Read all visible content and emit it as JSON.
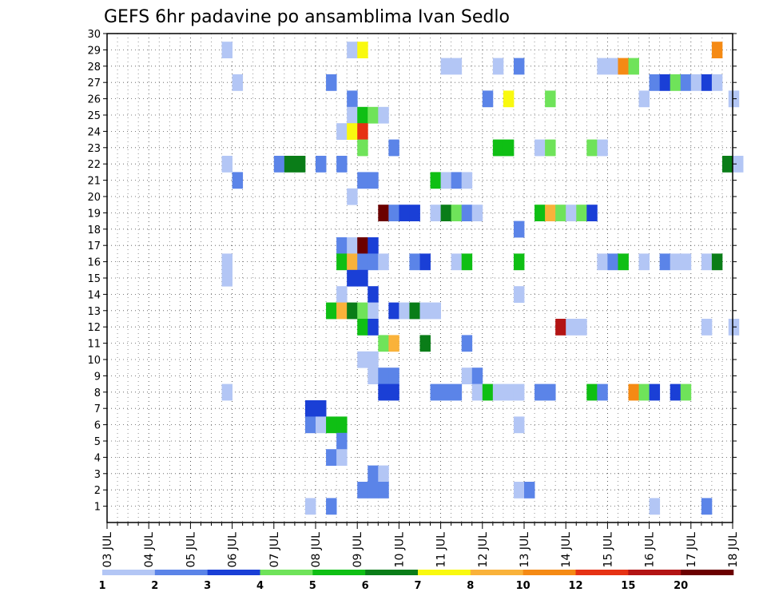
{
  "chart_data": {
    "type": "heatmap",
    "title": "GEFS 6hr padavine po ansamblima Ivan Sedlo",
    "xlabel": "",
    "ylabel": "",
    "x_tick_labels": [
      "03 JUL",
      "04 JUL",
      "05 JUL",
      "06 JUL",
      "07 JUL",
      "08 JUL",
      "09 JUL",
      "10 JUL",
      "11 JUL",
      "12 JUL",
      "13 JUL",
      "14 JUL",
      "15 JUL",
      "16 JUL",
      "17 JUL",
      "18 JUL"
    ],
    "y_tick_labels": [
      "1",
      "2",
      "3",
      "4",
      "5",
      "6",
      "7",
      "8",
      "9",
      "10",
      "11",
      "12",
      "13",
      "14",
      "15",
      "16",
      "17",
      "18",
      "19",
      "20",
      "21",
      "22",
      "23",
      "24",
      "25",
      "26",
      "27",
      "28",
      "29",
      "30"
    ],
    "ylim": [
      0,
      30
    ],
    "x_range_days": [
      0,
      15
    ],
    "grid": true,
    "legend": {
      "placement": "bottom",
      "colors": [
        "#b3c6f5",
        "#5b84e8",
        "#1a3fd6",
        "#6fe35a",
        "#0fbf14",
        "#0a7d18",
        "#f9f90f",
        "#f9b23a",
        "#f58a14",
        "#e63214",
        "#b31414",
        "#6b0000"
      ],
      "labels": [
        "1",
        "2",
        "3",
        "4",
        "5",
        "6",
        "7",
        "8",
        "10",
        "12",
        "15",
        "20"
      ]
    },
    "cells_format": [
      "day_offset_from_03_JUL",
      "member",
      "color_class_1_to_12"
    ],
    "cells": [
      [
        2.75,
        29,
        1
      ],
      [
        5.75,
        29,
        1
      ],
      [
        6.0,
        29,
        7
      ],
      [
        14.5,
        29,
        9
      ],
      [
        8.0,
        28,
        1
      ],
      [
        8.25,
        28,
        1
      ],
      [
        9.25,
        28,
        1
      ],
      [
        9.75,
        28,
        2
      ],
      [
        11.75,
        28,
        1
      ],
      [
        12.0,
        28,
        1
      ],
      [
        12.25,
        28,
        9
      ],
      [
        12.5,
        28,
        4
      ],
      [
        3.0,
        27,
        1
      ],
      [
        5.25,
        27,
        2
      ],
      [
        13.0,
        27,
        2
      ],
      [
        13.25,
        27,
        3
      ],
      [
        13.5,
        27,
        4
      ],
      [
        13.75,
        27,
        2
      ],
      [
        14.0,
        27,
        1
      ],
      [
        14.25,
        27,
        3
      ],
      [
        14.5,
        27,
        1
      ],
      [
        5.75,
        26,
        2
      ],
      [
        9.0,
        26,
        2
      ],
      [
        9.5,
        26,
        7
      ],
      [
        10.5,
        26,
        4
      ],
      [
        12.75,
        26,
        1
      ],
      [
        14.9,
        26,
        1
      ],
      [
        5.75,
        25,
        1
      ],
      [
        6.0,
        25,
        5
      ],
      [
        6.25,
        25,
        4
      ],
      [
        6.5,
        25,
        1
      ],
      [
        5.5,
        24,
        1
      ],
      [
        5.75,
        24,
        7
      ],
      [
        6.0,
        24,
        10
      ],
      [
        6.0,
        23,
        4
      ],
      [
        6.75,
        23,
        2
      ],
      [
        9.25,
        23,
        5
      ],
      [
        9.5,
        23,
        5
      ],
      [
        10.25,
        23,
        1
      ],
      [
        10.5,
        23,
        4
      ],
      [
        11.5,
        23,
        4
      ],
      [
        11.75,
        23,
        1
      ],
      [
        2.75,
        22,
        1
      ],
      [
        4.0,
        22,
        2
      ],
      [
        4.25,
        22,
        6
      ],
      [
        4.5,
        22,
        6
      ],
      [
        5.0,
        22,
        2
      ],
      [
        5.5,
        22,
        2
      ],
      [
        14.75,
        22,
        6
      ],
      [
        15.0,
        22,
        1
      ],
      [
        3.0,
        21,
        2
      ],
      [
        6.0,
        21,
        2
      ],
      [
        6.25,
        21,
        2
      ],
      [
        7.75,
        21,
        5
      ],
      [
        8.0,
        21,
        1
      ],
      [
        8.25,
        21,
        2
      ],
      [
        8.5,
        21,
        1
      ],
      [
        5.75,
        20,
        1
      ],
      [
        6.5,
        19,
        12
      ],
      [
        6.75,
        19,
        2
      ],
      [
        7.0,
        19,
        3
      ],
      [
        7.25,
        19,
        3
      ],
      [
        7.75,
        19,
        1
      ],
      [
        8.0,
        19,
        6
      ],
      [
        8.25,
        19,
        4
      ],
      [
        8.5,
        19,
        2
      ],
      [
        8.75,
        19,
        1
      ],
      [
        10.25,
        19,
        5
      ],
      [
        10.5,
        19,
        8
      ],
      [
        10.75,
        19,
        4
      ],
      [
        11.0,
        19,
        1
      ],
      [
        11.25,
        19,
        4
      ],
      [
        11.5,
        19,
        3
      ],
      [
        9.75,
        18,
        2
      ],
      [
        5.5,
        17,
        2
      ],
      [
        5.75,
        17,
        1
      ],
      [
        6.0,
        17,
        12
      ],
      [
        6.25,
        17,
        3
      ],
      [
        2.75,
        16,
        1
      ],
      [
        5.5,
        16,
        5
      ],
      [
        5.75,
        16,
        8
      ],
      [
        6.0,
        16,
        2
      ],
      [
        6.25,
        16,
        2
      ],
      [
        6.5,
        16,
        1
      ],
      [
        7.25,
        16,
        2
      ],
      [
        7.5,
        16,
        3
      ],
      [
        8.25,
        16,
        1
      ],
      [
        8.5,
        16,
        5
      ],
      [
        9.75,
        16,
        5
      ],
      [
        11.75,
        16,
        1
      ],
      [
        12.0,
        16,
        2
      ],
      [
        12.25,
        16,
        5
      ],
      [
        12.75,
        16,
        1
      ],
      [
        13.25,
        16,
        2
      ],
      [
        13.5,
        16,
        1
      ],
      [
        13.75,
        16,
        1
      ],
      [
        14.25,
        16,
        1
      ],
      [
        14.5,
        16,
        6
      ],
      [
        2.75,
        15,
        1
      ],
      [
        5.75,
        15,
        3
      ],
      [
        6.0,
        15,
        3
      ],
      [
        5.5,
        14,
        1
      ],
      [
        6.25,
        14,
        3
      ],
      [
        9.75,
        14,
        1
      ],
      [
        5.25,
        13,
        5
      ],
      [
        5.5,
        13,
        8
      ],
      [
        5.75,
        13,
        6
      ],
      [
        6.0,
        13,
        4
      ],
      [
        6.25,
        13,
        1
      ],
      [
        6.75,
        13,
        3
      ],
      [
        7.0,
        13,
        1
      ],
      [
        7.25,
        13,
        6
      ],
      [
        7.5,
        13,
        1
      ],
      [
        7.75,
        13,
        1
      ],
      [
        6.0,
        12,
        5
      ],
      [
        6.25,
        12,
        3
      ],
      [
        10.75,
        12,
        11
      ],
      [
        11.0,
        12,
        1
      ],
      [
        11.25,
        12,
        1
      ],
      [
        14.25,
        12,
        1
      ],
      [
        14.9,
        12,
        1
      ],
      [
        6.5,
        11,
        4
      ],
      [
        6.75,
        11,
        8
      ],
      [
        7.5,
        11,
        6
      ],
      [
        8.5,
        11,
        2
      ],
      [
        6.0,
        10,
        1
      ],
      [
        6.25,
        10,
        1
      ],
      [
        6.25,
        9,
        1
      ],
      [
        6.5,
        9,
        2
      ],
      [
        6.75,
        9,
        2
      ],
      [
        8.5,
        9,
        1
      ],
      [
        8.75,
        9,
        2
      ],
      [
        2.75,
        8,
        1
      ],
      [
        6.5,
        8,
        3
      ],
      [
        6.75,
        8,
        3
      ],
      [
        7.75,
        8,
        2
      ],
      [
        8.0,
        8,
        2
      ],
      [
        8.25,
        8,
        2
      ],
      [
        8.75,
        8,
        1
      ],
      [
        9.0,
        8,
        5
      ],
      [
        9.25,
        8,
        1
      ],
      [
        9.5,
        8,
        1
      ],
      [
        9.75,
        8,
        1
      ],
      [
        10.25,
        8,
        2
      ],
      [
        10.5,
        8,
        2
      ],
      [
        11.5,
        8,
        5
      ],
      [
        11.75,
        8,
        2
      ],
      [
        12.5,
        8,
        9
      ],
      [
        12.75,
        8,
        4
      ],
      [
        13.0,
        8,
        3
      ],
      [
        13.5,
        8,
        3
      ],
      [
        13.75,
        8,
        4
      ],
      [
        4.75,
        7,
        3
      ],
      [
        5.0,
        7,
        3
      ],
      [
        4.75,
        6,
        2
      ],
      [
        5.0,
        6,
        1
      ],
      [
        5.25,
        6,
        5
      ],
      [
        5.5,
        6,
        5
      ],
      [
        9.75,
        6,
        1
      ],
      [
        5.5,
        5,
        2
      ],
      [
        5.25,
        4,
        2
      ],
      [
        5.5,
        4,
        1
      ],
      [
        6.25,
        3,
        2
      ],
      [
        6.5,
        3,
        1
      ],
      [
        6.0,
        2,
        2
      ],
      [
        6.25,
        2,
        2
      ],
      [
        6.5,
        2,
        2
      ],
      [
        9.75,
        2,
        1
      ],
      [
        10.0,
        2,
        2
      ],
      [
        4.75,
        1,
        1
      ],
      [
        5.25,
        1,
        2
      ],
      [
        13.0,
        1,
        1
      ],
      [
        14.25,
        1,
        2
      ]
    ]
  }
}
